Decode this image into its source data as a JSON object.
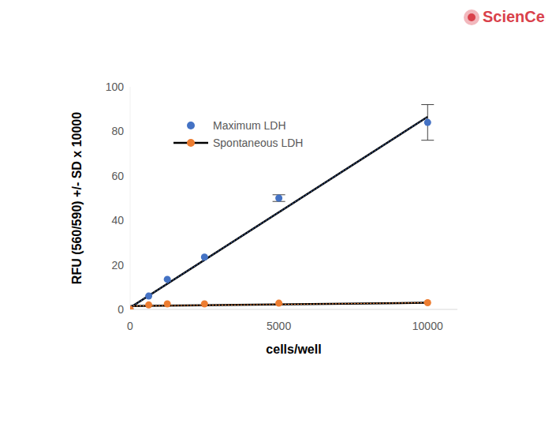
{
  "chart_data": {
    "type": "scatter",
    "watermark": "ScienCell",
    "x_label": "cells/well",
    "y_label": "RFU (560/590) +/- SD   x 10000",
    "x": [
      0,
      625,
      1250,
      2500,
      5000,
      10000
    ],
    "xlim": [
      0,
      11000
    ],
    "xticks": [
      0,
      5000,
      10000
    ],
    "ylim": [
      0,
      100
    ],
    "yticks": [
      0,
      20,
      40,
      60,
      80,
      100
    ],
    "grid": false,
    "legend": "upper left",
    "series": [
      {
        "name": "Maximum LDH",
        "color": "#4472c4",
        "marker": "circle",
        "line_style": "dashed",
        "values": [
          0,
          6,
          13.5,
          23.5,
          50,
          84
        ],
        "errors": [
          0,
          0,
          0,
          0,
          1.5,
          8
        ],
        "trendline": {
          "x": [
            0,
            10000
          ],
          "values": [
            0.8,
            86.5
          ]
        }
      },
      {
        "name": "Spontaneous LDH",
        "color": "#ed7d31",
        "marker": "circle",
        "line_style": "dashed",
        "values": [
          0,
          2,
          2.5,
          2.5,
          2.8,
          3
        ],
        "trendline": {
          "x": [
            0,
            10000
          ],
          "values": [
            1.5,
            3
          ]
        }
      }
    ]
  }
}
